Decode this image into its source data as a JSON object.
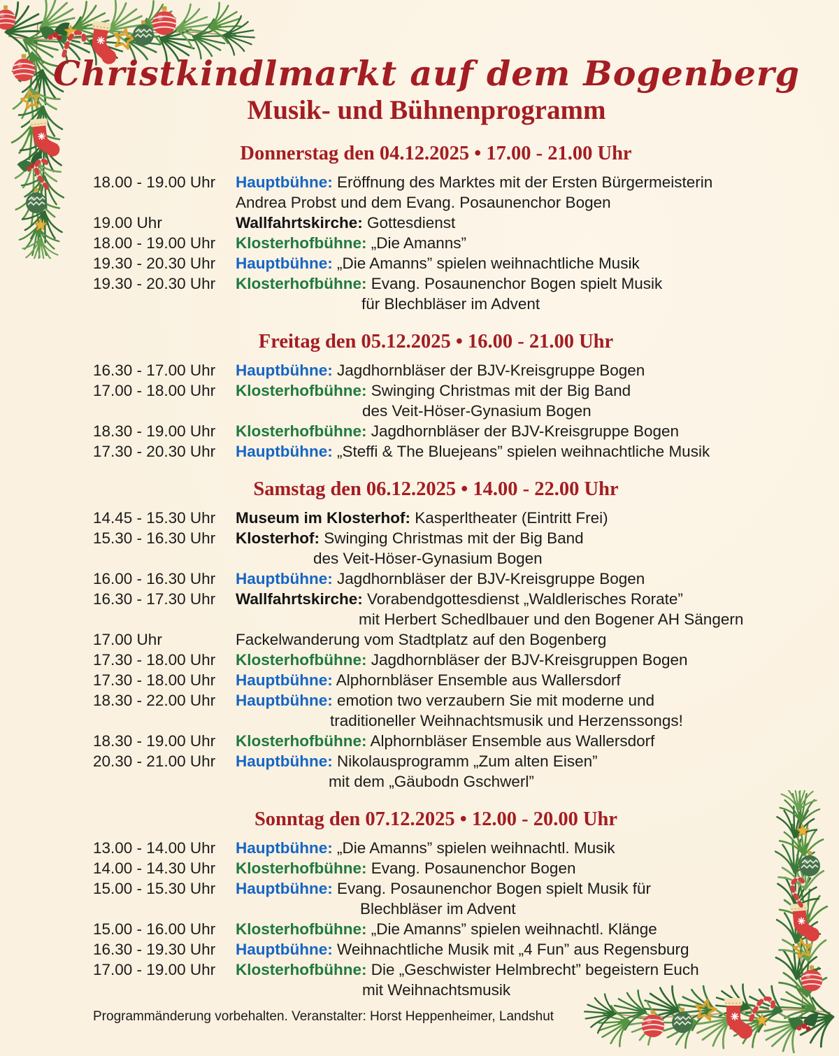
{
  "header": {
    "title": "Christkindlmarkt auf dem Bogenberg",
    "subtitle": "Musik- und Bühnenprogramm"
  },
  "colors": {
    "background": "#faf1e0",
    "title_red": "#a31d23",
    "hauptbuehne_blue": "#1565c4",
    "klosterhofbuehne_green": "#1f7a3e",
    "text_black": "#1b1b1b"
  },
  "decorations": {
    "top_left": "christmas-garland-corner",
    "bottom_right": "christmas-garland-corner"
  },
  "sections": [
    {
      "heading": "Donnerstag den 04.12.2025  •  17.00 - 21.00 Uhr",
      "events": [
        {
          "time": "18.00 - 19.00 Uhr",
          "venue": "Hauptbühne:",
          "venue_color": "blue",
          "line1": "Eröffnung des Marktes mit der Ersten Bürgermeisterin",
          "line2": "Andrea Probst und dem Evang. Posaunenchor Bogen",
          "indent2": 0
        },
        {
          "time": "19.00 Uhr",
          "venue": "Wallfahrtskirche:",
          "venue_color": "black",
          "line1": "Gottesdienst"
        },
        {
          "time": "18.00 - 19.00 Uhr",
          "venue": "Klosterhofbühne:",
          "venue_color": "green",
          "line1": "„Die Amanns”"
        },
        {
          "time": "19.30 - 20.30 Uhr",
          "venue": "Hauptbühne:",
          "venue_color": "blue",
          "line1": "„Die Amanns” spielen weihnachtliche Musik"
        },
        {
          "time": "19.30 - 20.30 Uhr",
          "venue": "Klosterhofbühne:",
          "venue_color": "green",
          "line1": "Evang. Posaunenchor Bogen spielt Musik",
          "line2": "für Blechbläser im Advent",
          "indent2": 180
        }
      ]
    },
    {
      "heading": "Freitag den 05.12.2025  •  16.00 - 21.00 Uhr",
      "events": [
        {
          "time": "16.30 - 17.00 Uhr",
          "venue": "Hauptbühne:",
          "venue_color": "blue",
          "line1": "Jagdhornbläser der BJV-Kreisgruppe Bogen"
        },
        {
          "time": "17.00 - 18.00 Uhr",
          "venue": "Klosterhofbühne:",
          "venue_color": "green",
          "line1": "Swinging Christmas mit der Big Band",
          "line2": "des Veit-Höser-Gynasium Bogen",
          "indent2": 181
        },
        {
          "time": "18.30 - 19.00 Uhr",
          "venue": "Klosterhofbühne:",
          "venue_color": "green",
          "line1": "Jagdhornbläser der BJV-Kreisgruppe Bogen"
        },
        {
          "time": "17.30 - 20.30 Uhr",
          "venue": "Hauptbühne:",
          "venue_color": "blue",
          "line1": "„Steffi & The Bluejeans” spielen weihnachtliche Musik"
        }
      ]
    },
    {
      "heading": "Samstag den 06.12.2025  • 14.00 - 22.00 Uhr",
      "events": [
        {
          "time": "14.45 - 15.30 Uhr",
          "venue": "Museum im Klosterhof:",
          "venue_color": "black",
          "line1": "Kasperltheater (Eintritt Frei)"
        },
        {
          "time": "15.30 - 16.30 Uhr",
          "venue": "Klosterhof:",
          "venue_color": "black",
          "line1": "Swinging Christmas mit der Big Band",
          "line2": "des Veit-Höser-Gynasium Bogen",
          "indent2": 111
        },
        {
          "time": "16.00 - 16.30 Uhr",
          "venue": "Hauptbühne:",
          "venue_color": "blue",
          "line1": "Jagdhornbläser der BJV-Kreisgruppe Bogen"
        },
        {
          "time": "16.30 - 17.30 Uhr",
          "venue": "Wallfahrtskirche:",
          "venue_color": "black",
          "line1": "Vorabendgottesdienst „Waldlerisches Rorate”",
          "line2": "mit Herbert Schedlbauer und den Bogener AH Sängern",
          "indent2": 176
        },
        {
          "time": "17.00 Uhr",
          "venue": "",
          "venue_color": "black",
          "line1": "Fackelwanderung vom Stadtplatz auf den Bogenberg"
        },
        {
          "time": "17.30 - 18.00 Uhr",
          "venue": "Klosterhofbühne:",
          "venue_color": "green",
          "line1": "Jagdhornbläser der BJV-Kreisgruppen Bogen"
        },
        {
          "time": "17.30 - 18.00 Uhr",
          "venue": "Hauptbühne:",
          "venue_color": "blue",
          "line1": "Alphornbläser Ensemble aus Wallersdorf"
        },
        {
          "time": "18.30 - 22.00 Uhr",
          "venue": "Hauptbühne:",
          "venue_color": "blue",
          "line1": "emotion two verzaubern Sie mit moderne und",
          "line2": "traditioneller Weihnachtsmusik und Herzenssongs!",
          "indent2": 135
        },
        {
          "time": "18.30 - 19.00 Uhr",
          "venue": "Klosterhofbühne:",
          "venue_color": "green",
          "line1": "Alphornbläser Ensemble aus Wallersdorf"
        },
        {
          "time": "20.30 - 21.00 Uhr",
          "venue": "Hauptbühne:",
          "venue_color": "blue",
          "line1": "Nikolausprogramm „Zum alten Eisen”",
          "line2": "mit dem „Gäubodn Gschwerl”",
          "indent2": 133
        }
      ]
    },
    {
      "heading": "Sonntag den 07.12.2025  •  12.00 - 20.00 Uhr",
      "events": [
        {
          "time": "13.00 - 14.00 Uhr",
          "venue": "Hauptbühne:",
          "venue_color": "blue",
          "line1": "„Die Amanns” spielen weihnachtl. Musik"
        },
        {
          "time": "14.00 - 14.30 Uhr",
          "venue": "Klosterhofbühne:",
          "venue_color": "green",
          "line1": "Evang. Posaunenchor Bogen"
        },
        {
          "time": "15.00 - 15.30 Uhr",
          "venue": "Hauptbühne:",
          "venue_color": "blue",
          "line1": "Evang. Posaunenchor Bogen spielt Musik für",
          "line2": "Blechbläser im Advent",
          "indent2": 178
        },
        {
          "time": "15.00 - 16.00 Uhr",
          "venue": "Klosterhofbühne:",
          "venue_color": "green",
          "line1": "„Die Amanns” spielen weihnachtl. Klänge"
        },
        {
          "time": "16.30 - 19.30 Uhr",
          "venue": "Hauptbühne:",
          "venue_color": "blue",
          "line1": "Weihnachtliche Musik mit „4 Fun” aus Regensburg"
        },
        {
          "time": "17.00 - 19.00 Uhr",
          "venue": "Klosterhofbühne:",
          "venue_color": "green",
          "line1": "Die „Geschwister Helmbrecht” begeistern Euch",
          "line2": "mit Weihnachtsmusik",
          "indent2": 181
        }
      ]
    }
  ],
  "footer": {
    "note": "Programmänderung vorbehalten. Veranstalter: Horst Heppenheimer, Landshut"
  }
}
